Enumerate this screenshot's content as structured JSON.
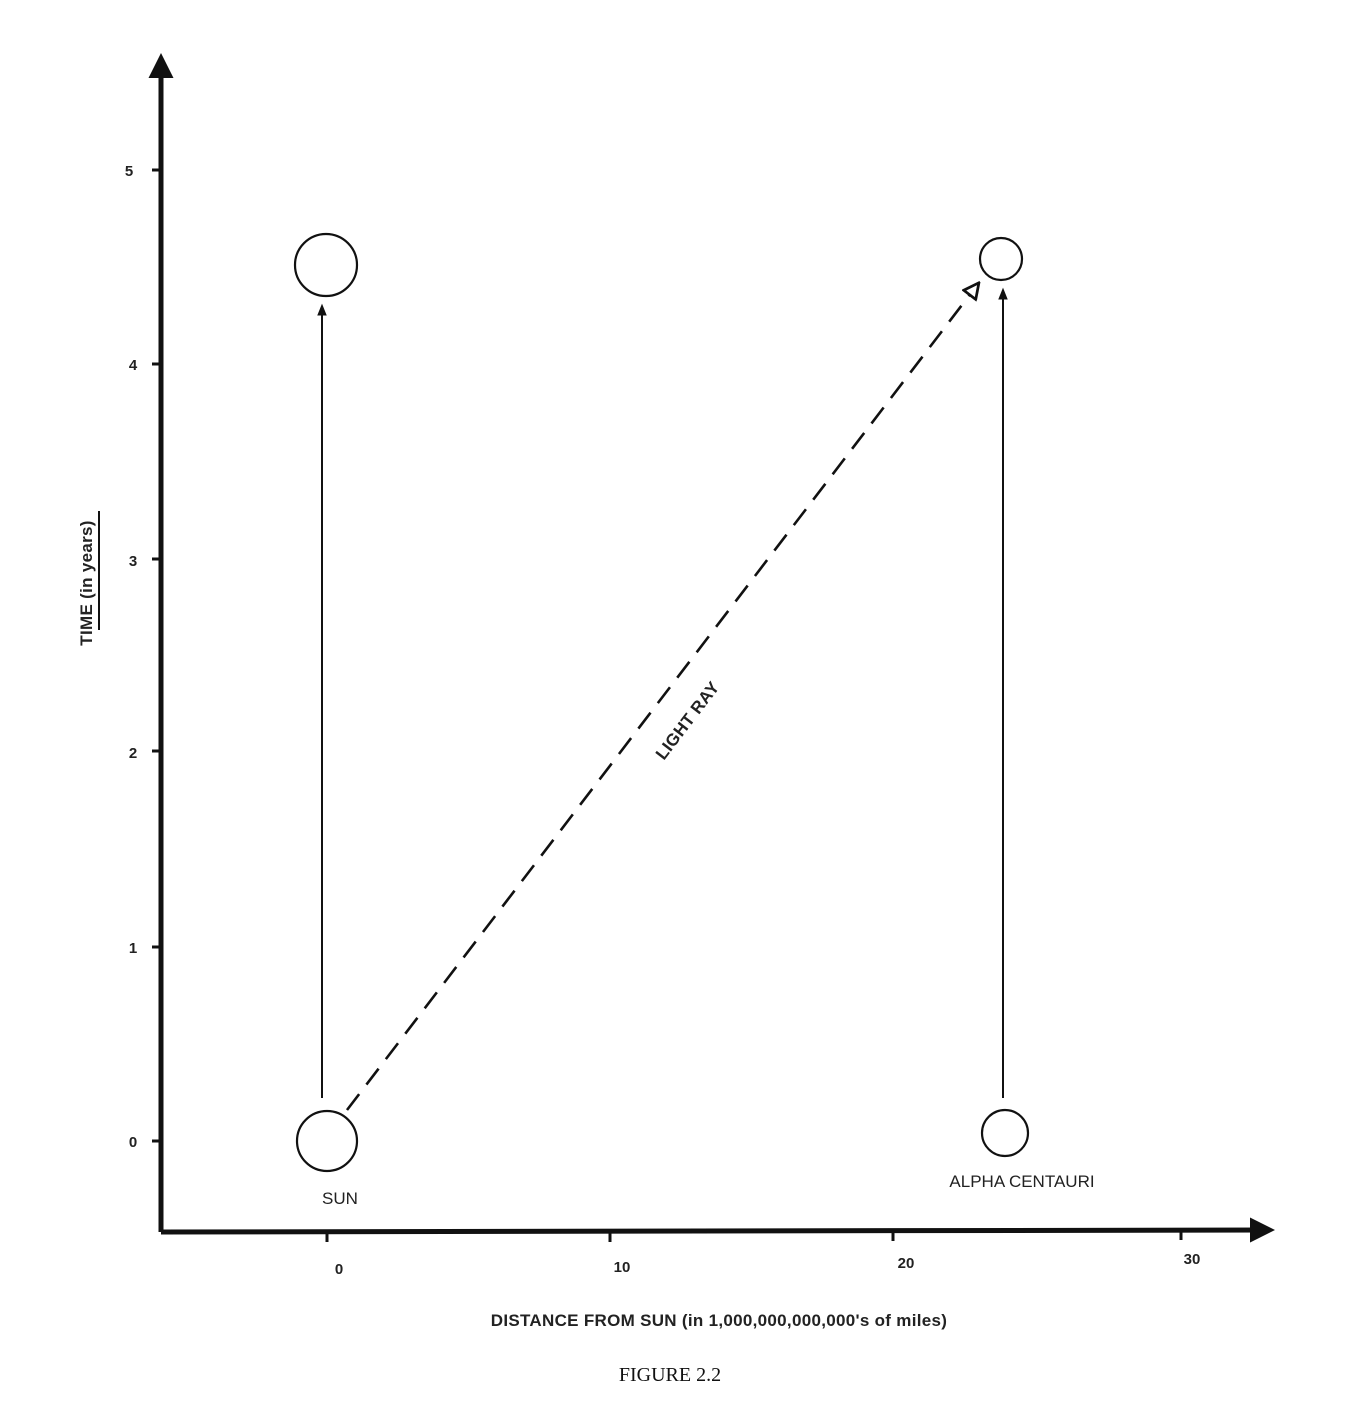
{
  "diagram": {
    "y_axis": {
      "title_main": "TIME",
      "title_unit": "(in years)",
      "ticks": [
        "0",
        "1",
        "2",
        "3",
        "4",
        "5"
      ]
    },
    "x_axis": {
      "title": "DISTANCE FROM SUN (in 1,000,000,000,000's of miles)",
      "ticks": [
        "0",
        "10",
        "20",
        "30"
      ]
    },
    "objects": {
      "sun": {
        "label": "SUN",
        "distance": 0,
        "time_start": 0,
        "time_end": 4.5
      },
      "alpha_centauri": {
        "label": "ALPHA CENTAURI",
        "distance": 24,
        "time_start": 0,
        "time_end": 4.5
      }
    },
    "light_ray": {
      "label": "LIGHT RAY",
      "from": [
        0,
        0
      ],
      "to": [
        24,
        4.5
      ]
    }
  },
  "caption": "FIGURE 2.2"
}
